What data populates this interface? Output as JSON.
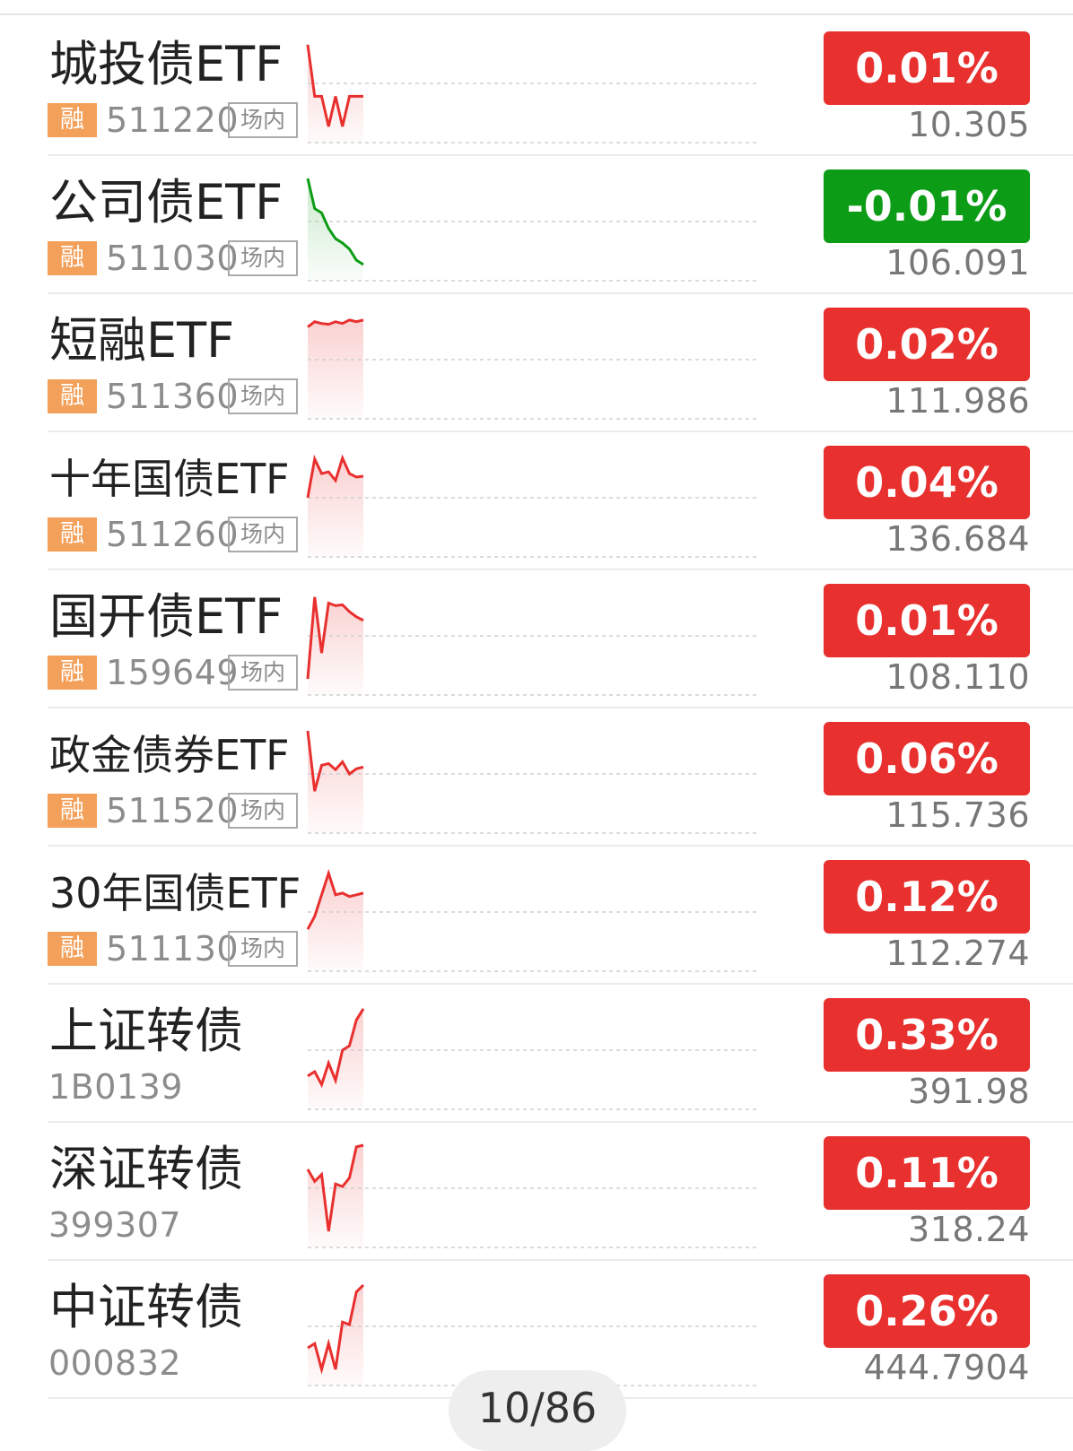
{
  "rows": [
    {
      "name": "城投债ETF",
      "tag": "融",
      "code": "511220",
      "market": "场内",
      "change": "0.01%",
      "price": "10.305",
      "direction": "up",
      "spark": [
        0.95,
        0.35,
        0.35,
        0.0,
        0.35,
        0.0,
        0.35,
        0.35,
        0.35
      ]
    },
    {
      "name": "公司债ETF",
      "tag": "融",
      "code": "511030",
      "market": "场内",
      "change": "-0.01%",
      "price": "106.091",
      "direction": "down",
      "spark": [
        1.0,
        0.65,
        0.6,
        0.42,
        0.3,
        0.25,
        0.18,
        0.05,
        0.0
      ]
    },
    {
      "name": "短融ETF",
      "tag": "融",
      "code": "511360",
      "market": "场内",
      "change": "0.02%",
      "price": "111.986",
      "direction": "up",
      "spark": [
        0.88,
        0.94,
        0.92,
        0.91,
        0.94,
        0.92,
        0.96,
        0.94,
        0.96
      ]
    },
    {
      "name": "十年国债ETF",
      "tag": "融",
      "code": "511260",
      "market": "场内",
      "change": "0.04%",
      "price": "136.684",
      "direction": "up",
      "spark": [
        0.5,
        0.95,
        0.78,
        0.8,
        0.7,
        0.96,
        0.78,
        0.74,
        0.75
      ]
    },
    {
      "name": "国开债ETF",
      "tag": "融",
      "code": "159649",
      "market": "场内",
      "change": "0.01%",
      "price": "108.110",
      "direction": "up",
      "spark": [
        0.0,
        0.95,
        0.3,
        0.88,
        0.85,
        0.86,
        0.78,
        0.72,
        0.68
      ]
    },
    {
      "name": "政金债券ETF",
      "tag": "融",
      "code": "511520",
      "market": "场内",
      "change": "0.06%",
      "price": "115.736",
      "direction": "up",
      "spark": [
        1.0,
        0.3,
        0.6,
        0.62,
        0.55,
        0.64,
        0.5,
        0.56,
        0.58
      ]
    },
    {
      "name": "30年国债ETF",
      "tag": "融",
      "code": "511130",
      "market": "场内",
      "change": "0.12%",
      "price": "112.274",
      "direction": "up",
      "spark": [
        0.3,
        0.45,
        0.7,
        0.95,
        0.7,
        0.72,
        0.68,
        0.7,
        0.72
      ]
    },
    {
      "name": "上证转债",
      "tag": "",
      "code": "1B0139",
      "market": "",
      "change": "0.33%",
      "price": "391.98",
      "direction": "up",
      "spark": [
        0.2,
        0.25,
        0.1,
        0.35,
        0.15,
        0.5,
        0.55,
        0.85,
        0.98
      ]
    },
    {
      "name": "深证转债",
      "tag": "",
      "code": "399307",
      "market": "",
      "change": "0.11%",
      "price": "318.24",
      "direction": "up",
      "spark": [
        0.72,
        0.58,
        0.66,
        0.0,
        0.55,
        0.52,
        0.62,
        0.98,
        1.0
      ]
    },
    {
      "name": "中证转债",
      "tag": "",
      "code": "000832",
      "market": "",
      "change": "0.26%",
      "price": "444.7904",
      "direction": "up",
      "spark": [
        0.25,
        0.3,
        0.0,
        0.3,
        0.0,
        0.55,
        0.52,
        0.9,
        0.98
      ]
    }
  ],
  "pager": "10/86",
  "colors": {
    "up": "#e8302f",
    "down": "#0c9c16",
    "rong": "#f3a05a"
  }
}
